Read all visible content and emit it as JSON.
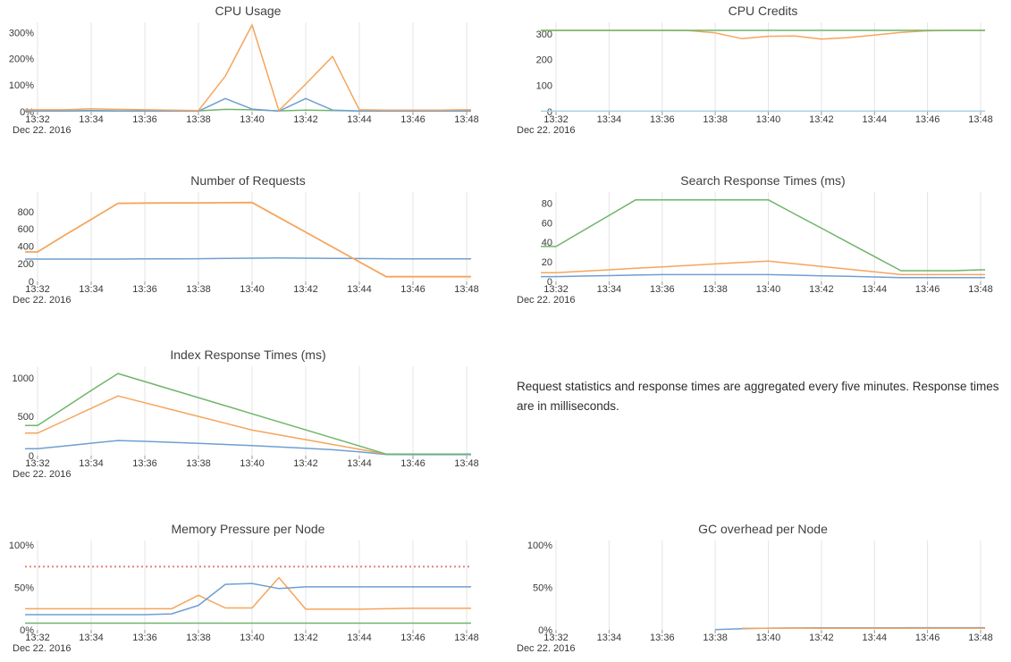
{
  "note": {
    "text": "Request statistics and response times are aggregated every five minutes. Response times are in milliseconds."
  },
  "palette": {
    "blue": "#6f9fd3",
    "orange": "#f5a55c",
    "green": "#6fb56a",
    "pale_blue": "#a9cfe3",
    "threshold_red": "#e5807e",
    "gridline": "#e4e4e4"
  },
  "chart_data": [
    {
      "type": "line",
      "title": "CPU Usage",
      "position": "row 1 left",
      "xlabel": "",
      "ylabel": "",
      "grid": "vertical",
      "legend": "none",
      "date_label": "Dec 22. 2016",
      "x_ticks": [
        "13:32",
        "13:34",
        "13:36",
        "13:38",
        "13:40",
        "13:42",
        "13:44",
        "13:46",
        "13:48"
      ],
      "x_minutes_range": [
        32,
        48
      ],
      "ylim": [
        0,
        340
      ],
      "y_ticks": [
        {
          "v": 0,
          "label": "0%"
        },
        {
          "v": 100,
          "label": "100%"
        },
        {
          "v": 200,
          "label": "200%"
        },
        {
          "v": 300,
          "label": "300%"
        }
      ],
      "series": [
        {
          "name": "green",
          "color": "#6fb56a",
          "values": [
            3,
            3,
            4,
            3,
            3,
            3,
            3,
            9,
            7,
            3,
            6,
            4,
            3,
            3,
            3,
            3,
            3
          ]
        },
        {
          "name": "blue",
          "color": "#6f9fd3",
          "values": [
            2,
            2,
            3,
            2,
            2,
            2,
            2,
            50,
            10,
            2,
            50,
            6,
            2,
            2,
            2,
            2,
            2
          ]
        },
        {
          "name": "orange",
          "color": "#f5a55c",
          "values": [
            7,
            7,
            11,
            9,
            7,
            6,
            4,
            135,
            330,
            4,
            105,
            210,
            7,
            6,
            6,
            6,
            7
          ]
        }
      ]
    },
    {
      "type": "line",
      "title": "CPU Credits",
      "position": "row 1 right",
      "xlabel": "",
      "ylabel": "",
      "grid": "vertical",
      "legend": "none",
      "date_label": "Dec 22. 2016",
      "x_ticks": [
        "13:32",
        "13:34",
        "13:36",
        "13:38",
        "13:40",
        "13:42",
        "13:44",
        "13:46",
        "13:48"
      ],
      "x_minutes_range": [
        32,
        48
      ],
      "ylim": [
        0,
        346
      ],
      "y_ticks": [
        {
          "v": 0,
          "label": "0"
        },
        {
          "v": 100,
          "label": "100"
        },
        {
          "v": 200,
          "label": "200"
        },
        {
          "v": 300,
          "label": "300"
        }
      ],
      "series": [
        {
          "name": "pale-blue",
          "color": "#a9cfe3",
          "values": [
            2,
            2,
            2,
            2,
            2,
            2,
            2,
            2,
            2,
            2,
            2,
            2,
            2,
            2,
            2,
            2,
            2
          ]
        },
        {
          "name": "orange",
          "color": "#f5a55c",
          "values": [
            315,
            315,
            315,
            315,
            315,
            314,
            305,
            283,
            292,
            293,
            281,
            287,
            297,
            307,
            313,
            315,
            315
          ]
        },
        {
          "name": "green",
          "color": "#6fb56a",
          "values": [
            315,
            315,
            315,
            315,
            315,
            315,
            315,
            315,
            315,
            315,
            315,
            315,
            315,
            315,
            315,
            315,
            315
          ]
        }
      ]
    },
    {
      "type": "line",
      "title": "Number of Requests",
      "position": "row 2 left",
      "xlabel": "",
      "ylabel": "",
      "grid": "vertical",
      "legend": "none",
      "date_label": "Dec 22. 2016",
      "x_ticks": [
        "13:32",
        "13:34",
        "13:36",
        "13:38",
        "13:40",
        "13:42",
        "13:44",
        "13:46",
        "13:48"
      ],
      "x_minutes_range": [
        32,
        48
      ],
      "ylim": [
        0,
        1030
      ],
      "y_ticks": [
        {
          "v": 0,
          "label": "0"
        },
        {
          "v": 200,
          "label": "200"
        },
        {
          "v": 400,
          "label": "400"
        },
        {
          "v": 600,
          "label": "600"
        },
        {
          "v": 800,
          "label": "800"
        }
      ],
      "series": [
        {
          "name": "blue",
          "color": "#6f9fd3",
          "values": [
            258,
            258,
            258,
            258,
            260,
            261,
            262,
            265,
            268,
            270,
            268,
            266,
            264,
            262,
            261,
            260,
            260
          ]
        },
        {
          "name": "orange",
          "color": "#f5a55c",
          "width": 1.8,
          "values": [
            340,
            530,
            715,
            900,
            903,
            905,
            905,
            907,
            910,
            739,
            568,
            397,
            226,
            55,
            55,
            55,
            55
          ]
        }
      ]
    },
    {
      "type": "line",
      "title": "Search Response Times (ms)",
      "position": "row 2 right",
      "xlabel": "",
      "ylabel": "",
      "grid": "vertical",
      "legend": "none",
      "date_label": "Dec 22. 2016",
      "x_ticks": [
        "13:32",
        "13:34",
        "13:36",
        "13:38",
        "13:40",
        "13:42",
        "13:44",
        "13:46",
        "13:48"
      ],
      "x_minutes_range": [
        32,
        48
      ],
      "ylim": [
        0,
        92
      ],
      "y_ticks": [
        {
          "v": 0,
          "label": "0"
        },
        {
          "v": 20,
          "label": "20"
        },
        {
          "v": 40,
          "label": "40"
        },
        {
          "v": 60,
          "label": "60"
        },
        {
          "v": 80,
          "label": "80"
        }
      ],
      "series": [
        {
          "name": "blue",
          "color": "#6f9fd3",
          "values": [
            5,
            5.5,
            6,
            6.5,
            7,
            7,
            7,
            7,
            7,
            6.4,
            5.8,
            5.2,
            4.6,
            4,
            4,
            4,
            4
          ]
        },
        {
          "name": "orange",
          "color": "#f5a55c",
          "values": [
            9,
            10.5,
            12,
            13.5,
            15,
            16.5,
            18,
            19.5,
            21,
            18.2,
            15.4,
            12.6,
            9.8,
            7,
            7,
            7,
            7
          ]
        },
        {
          "name": "green",
          "color": "#6fb56a",
          "values": [
            36,
            52,
            68,
            84,
            84,
            84,
            84,
            84,
            84,
            69.4,
            54.8,
            40.2,
            25.6,
            11,
            11,
            11,
            12
          ]
        }
      ]
    },
    {
      "type": "line",
      "title": "Index Response Times (ms)",
      "position": "row 3 left",
      "xlabel": "",
      "ylabel": "",
      "grid": "vertical",
      "legend": "none",
      "date_label": "Dec 22. 2016",
      "x_ticks": [
        "13:32",
        "13:34",
        "13:36",
        "13:38",
        "13:40",
        "13:42",
        "13:44",
        "13:46",
        "13:48"
      ],
      "x_minutes_range": [
        32,
        48
      ],
      "ylim": [
        0,
        1153
      ],
      "y_ticks": [
        {
          "v": 0,
          "label": "0"
        },
        {
          "v": 500,
          "label": "500"
        },
        {
          "v": 1000,
          "label": "1000"
        }
      ],
      "series": [
        {
          "name": "blue",
          "color": "#6f9fd3",
          "values": [
            90,
            125,
            160,
            195,
            185,
            172,
            158,
            144,
            130,
            112,
            94,
            76,
            50,
            15,
            13,
            13,
            13
          ]
        },
        {
          "name": "orange",
          "color": "#f5a55c",
          "values": [
            290,
            450,
            610,
            770,
            682,
            594,
            506,
            418,
            330,
            268,
            206,
            144,
            82,
            20,
            20,
            20,
            20
          ]
        },
        {
          "name": "green",
          "color": "#6fb56a",
          "values": [
            390,
            615,
            840,
            1060,
            956,
            852,
            748,
            644,
            540,
            436,
            332,
            228,
            124,
            20,
            20,
            20,
            20
          ]
        }
      ]
    },
    {
      "type": "line",
      "title": "Memory Pressure per Node",
      "position": "row 4 left",
      "xlabel": "",
      "ylabel": "",
      "grid": "vertical",
      "legend": "none",
      "date_label": "Dec 22. 2016",
      "x_ticks": [
        "13:32",
        "13:34",
        "13:36",
        "13:38",
        "13:40",
        "13:42",
        "13:44",
        "13:46",
        "13:48"
      ],
      "x_minutes_range": [
        32,
        48
      ],
      "ylim": [
        0,
        106
      ],
      "y_ticks": [
        {
          "v": 0,
          "label": "0%"
        },
        {
          "v": 50,
          "label": "50%"
        },
        {
          "v": 100,
          "label": "100%"
        }
      ],
      "series": [
        {
          "name": "threshold-red-dotted",
          "color": "#e5807e",
          "width": 2,
          "dash": "2,3",
          "values": [
            75,
            75,
            75,
            75,
            75,
            75,
            75,
            75,
            75,
            75,
            75,
            75,
            75,
            75,
            75,
            75,
            75
          ]
        },
        {
          "name": "green",
          "color": "#6fb56a",
          "values": [
            8,
            8,
            8,
            8,
            8,
            8,
            8,
            8,
            8,
            8,
            8,
            8,
            8,
            8,
            8,
            8,
            8
          ]
        },
        {
          "name": "orange",
          "color": "#f5a55c",
          "values": [
            25,
            25,
            25,
            25,
            25,
            25,
            41,
            26,
            26,
            62,
            24.5,
            24.5,
            24.5,
            25,
            25.5,
            25.5,
            25.5
          ]
        },
        {
          "name": "blue",
          "color": "#6f9fd3",
          "values": [
            18,
            18,
            18,
            18,
            18,
            19,
            29,
            54,
            55,
            49,
            51,
            51,
            51,
            51,
            51,
            51,
            51
          ]
        }
      ]
    },
    {
      "type": "line",
      "title": "GC overhead per Node",
      "position": "row 4 right",
      "xlabel": "",
      "ylabel": "",
      "grid": "vertical",
      "legend": "none",
      "date_label": "Dec 22. 2016",
      "x_ticks": [
        "13:32",
        "13:34",
        "13:36",
        "13:38",
        "13:40",
        "13:42",
        "13:44",
        "13:46",
        "13:48"
      ],
      "x_minutes_range": [
        32,
        48
      ],
      "ylim": [
        0,
        106
      ],
      "y_ticks": [
        {
          "v": 0,
          "label": "0%"
        },
        {
          "v": 50,
          "label": "50%"
        },
        {
          "v": 100,
          "label": "100%"
        }
      ],
      "series": [
        {
          "name": "blue",
          "color": "#6f9fd3",
          "x": [
            38,
            39,
            40,
            41,
            42,
            43,
            44,
            45,
            46,
            47,
            48
          ],
          "values": [
            0.3,
            1.3,
            2,
            2.2,
            2.3,
            2.3,
            2.4,
            2.4,
            2.5,
            2.5,
            2.5
          ]
        },
        {
          "name": "orange",
          "color": "#f5a55c",
          "x": [
            39,
            40,
            41,
            42,
            43,
            44,
            45,
            46,
            47,
            48
          ],
          "values": [
            1.8,
            1.8,
            2,
            1.9,
            1.9,
            1.9,
            1.8,
            1.9,
            1.9,
            1.9
          ]
        }
      ]
    }
  ]
}
